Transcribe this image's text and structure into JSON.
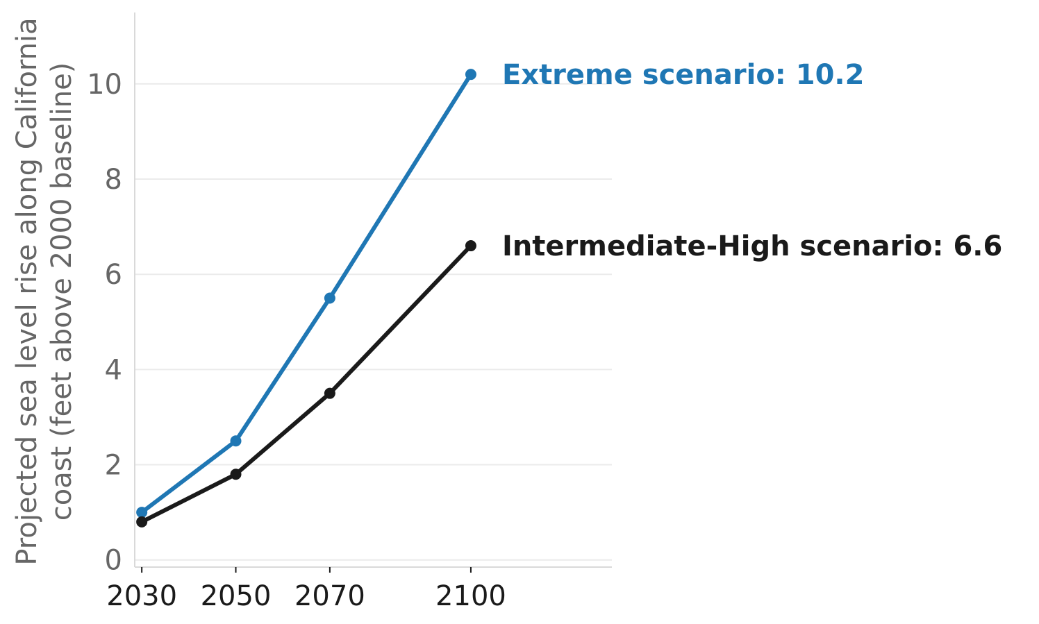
{
  "chart_data": {
    "type": "line",
    "title": "",
    "xlabel": "",
    "ylabel_lines": [
      "Projected sea level rise along California",
      "coast (feet above 2000 baseline)"
    ],
    "x": [
      2030,
      2050,
      2070,
      2100
    ],
    "x_tick_labels": [
      "2030",
      "2050",
      "2070",
      "2100"
    ],
    "xlim": [
      2028.5,
      2130
    ],
    "ylim": [
      -0.15,
      11.5
    ],
    "y_ticks": [
      0,
      2,
      4,
      6,
      8,
      10
    ],
    "y_tick_labels": [
      "0",
      "2",
      "4",
      "6",
      "8",
      "10"
    ],
    "grid": "horizontal",
    "legend": "none (direct end labels)",
    "series": [
      {
        "name": "Extreme scenario",
        "values": [
          1.0,
          2.5,
          5.5,
          10.2
        ],
        "color": "#1f77b4",
        "end_label": "Extreme scenario: 10.2"
      },
      {
        "name": "Intermediate-High scenario",
        "values": [
          0.8,
          1.8,
          3.5,
          6.6
        ],
        "color": "#1a1a1a",
        "end_label": "Intermediate-High scenario: 6.6"
      }
    ]
  }
}
